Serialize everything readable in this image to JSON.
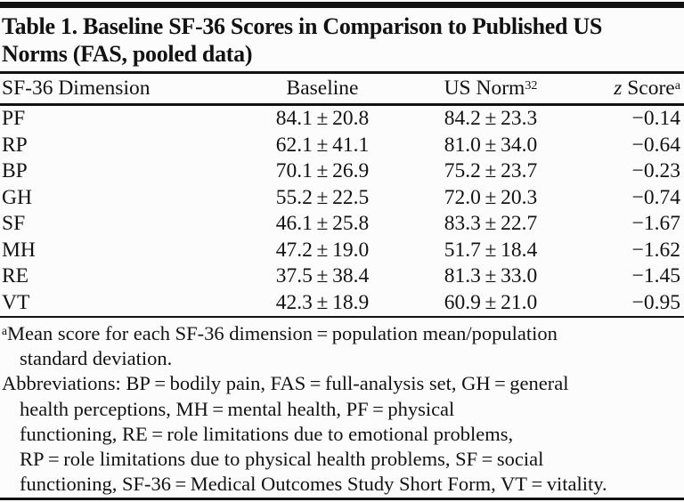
{
  "title": {
    "lines": [
      "Table 1. Baseline SF-36 Scores in Comparison to Published US",
      "Norms (FAS, pooled data)"
    ]
  },
  "header": {
    "dimension": "SF-36 Dimension",
    "baseline": "Baseline",
    "us_norm": "US Norm",
    "us_norm_sup": "32",
    "z_italic": "z",
    "z_rest": " Score",
    "z_sup": "a"
  },
  "rows": [
    {
      "dimension": "PF",
      "baseline": "84.1 ± 20.8",
      "us_norm": "84.2 ± 23.3",
      "z_score": "−0.14"
    },
    {
      "dimension": "RP",
      "baseline": "62.1 ± 41.1",
      "us_norm": "81.0 ± 34.0",
      "z_score": "−0.64"
    },
    {
      "dimension": "BP",
      "baseline": "70.1 ± 26.9",
      "us_norm": "75.2 ± 23.7",
      "z_score": "−0.23"
    },
    {
      "dimension": "GH",
      "baseline": "55.2 ± 22.5",
      "us_norm": "72.0 ± 20.3",
      "z_score": "−0.74"
    },
    {
      "dimension": "SF",
      "baseline": "46.1 ± 25.8",
      "us_norm": "83.3 ± 22.7",
      "z_score": "−1.67"
    },
    {
      "dimension": "MH",
      "baseline": "47.2 ± 19.0",
      "us_norm": "51.7 ± 18.4",
      "z_score": "−1.62"
    },
    {
      "dimension": "RE",
      "baseline": "37.5 ± 38.4",
      "us_norm": "81.3 ± 33.0",
      "z_score": "−1.45"
    },
    {
      "dimension": "VT",
      "baseline": "42.3 ± 18.9",
      "us_norm": "60.9 ± 21.0",
      "z_score": "−0.95"
    }
  ],
  "footnotes": {
    "a_sup": "a",
    "a_lines": [
      "Mean score for each SF-36 dimension = population mean/population",
      "standard deviation."
    ],
    "abbrev_lines": [
      "Abbreviations: BP = bodily pain, FAS = full-analysis set, GH = general",
      "health perceptions, MH = mental health, PF = physical",
      "functioning, RE = role limitations due to emotional problems,",
      "RP = role limitations due to physical health problems, SF = social",
      "functioning, SF-36 = Medical Outcomes Study Short Form, VT = vitality."
    ]
  },
  "colors": {
    "text": "#121212",
    "rule": "#121212",
    "background": "#fcfcfc"
  }
}
